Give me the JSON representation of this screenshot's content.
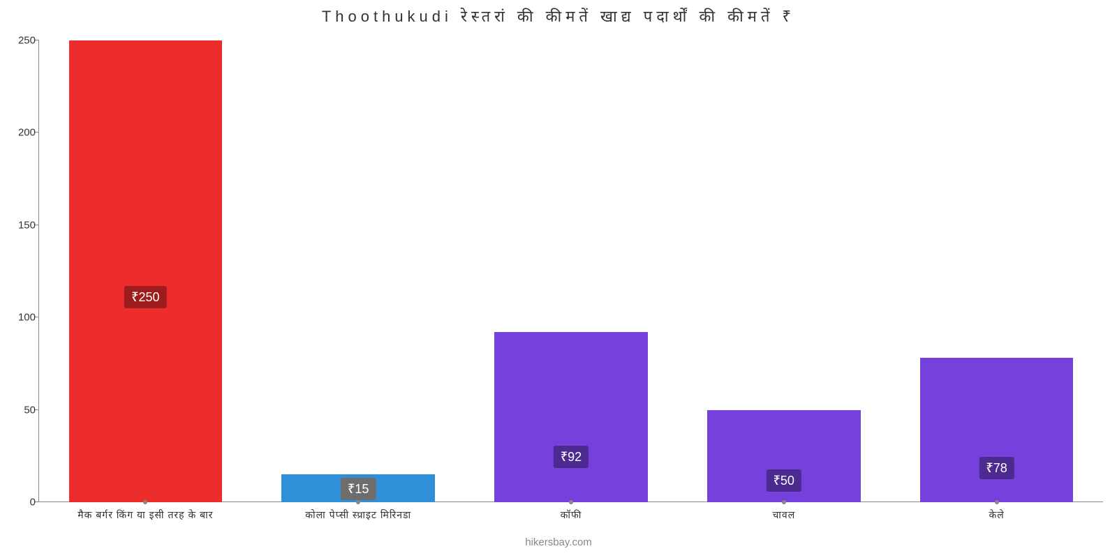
{
  "chart": {
    "type": "bar",
    "title": "Thoothukudi रेस्तरां   की   कीमतें   खाद्य   पदार्थों   की   कीमतें   ₹",
    "title_fontsize": 22,
    "title_color": "#333333",
    "background_color": "#ffffff",
    "axis_color": "#888888",
    "text_color": "#333333",
    "ylim": [
      0,
      250
    ],
    "ytick_step": 50,
    "yticks": [
      0,
      50,
      100,
      150,
      200,
      250
    ],
    "bar_width_ratio": 0.72,
    "attribution": "hikersbay.com",
    "attribution_color": "#888888",
    "bars": [
      {
        "category": "मैक बर्गर किंग या इसी तरह के बार",
        "value": 250,
        "value_label": "₹250",
        "bar_color": "#ed2c2c",
        "label_bg": "#9e1c1c",
        "label_bottom_pct": 42
      },
      {
        "category": "कोला पेप्सी स्प्राइट मिरिनडा",
        "value": 15,
        "value_label": "₹15",
        "bar_color": "#2f8fd8",
        "label_bg": "#6d6d6d",
        "label_bottom_pct": 8
      },
      {
        "category": "कॉफी",
        "value": 92,
        "value_label": "₹92",
        "bar_color": "#7540db",
        "label_bg": "#4c2a8f",
        "label_bottom_pct": 20
      },
      {
        "category": "चावल",
        "value": 50,
        "value_label": "₹50",
        "bar_color": "#7540db",
        "label_bg": "#4c2a8f",
        "label_bottom_pct": 11
      },
      {
        "category": "केले",
        "value": 78,
        "value_label": "₹78",
        "bar_color": "#7540db",
        "label_bg": "#4c2a8f",
        "label_bottom_pct": 16
      }
    ]
  }
}
